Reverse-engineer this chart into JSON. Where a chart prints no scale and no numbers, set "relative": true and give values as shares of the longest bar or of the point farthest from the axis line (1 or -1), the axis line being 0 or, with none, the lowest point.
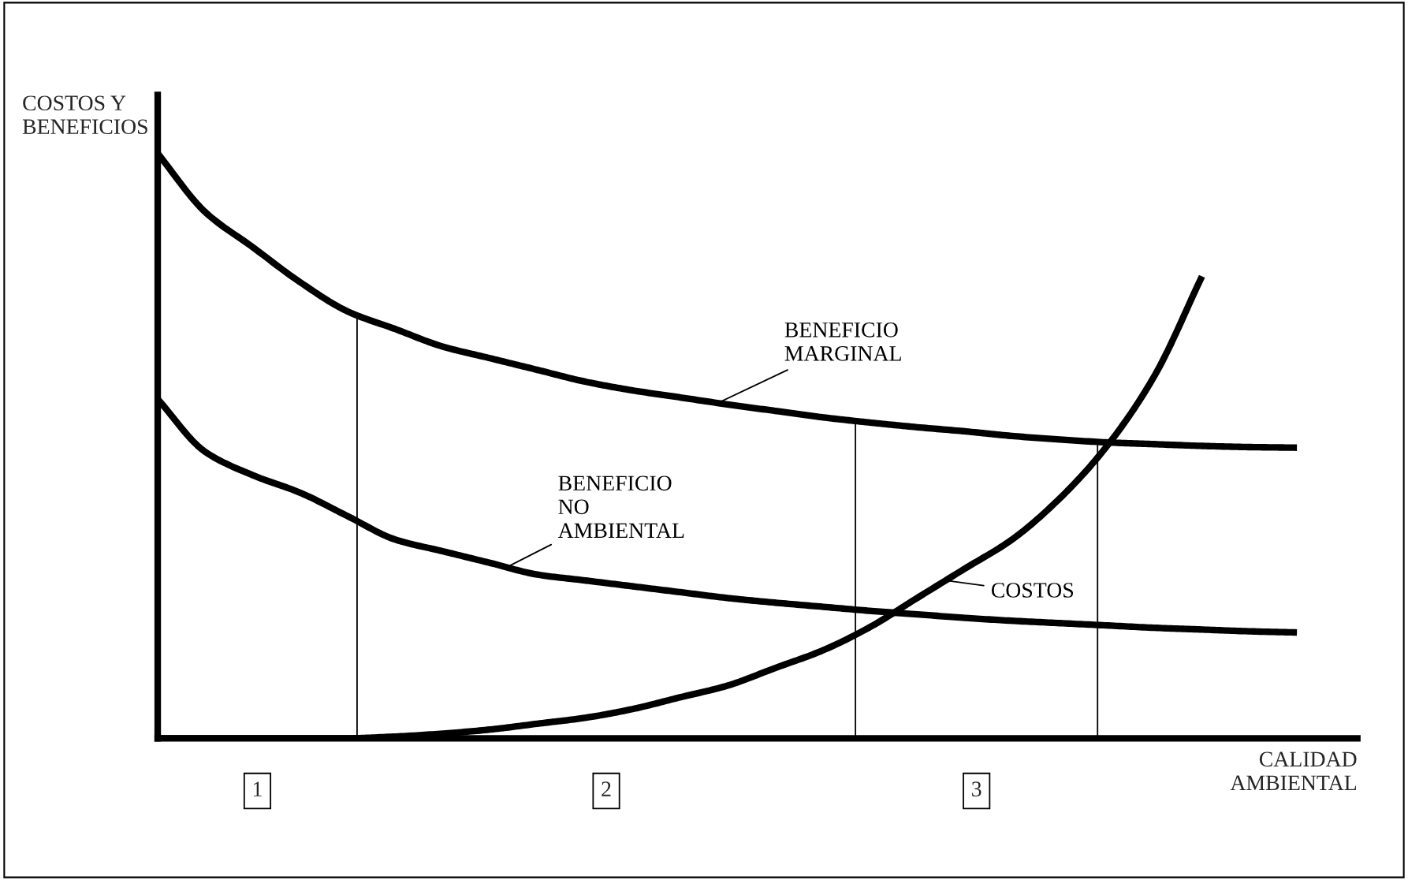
{
  "chart_data": {
    "type": "line",
    "relative": true,
    "xlabel": "CALIDAD\nAMBIENTAL",
    "ylabel": "COSTOS Y\nBENEFICIOS",
    "categories": [
      null,
      null,
      null,
      null,
      null,
      null,
      null,
      null,
      null,
      null,
      null,
      null,
      null,
      null,
      null,
      null,
      null,
      null,
      null,
      null,
      null,
      null,
      null,
      null,
      null
    ],
    "series": [
      {
        "name": "BENEFICIO\nMARGINAL",
        "color": "#000000",
        "values": [
          1.0,
          0.9,
          0.84,
          0.78,
          0.73,
          0.7,
          0.67,
          0.65,
          0.63,
          0.61,
          0.595,
          0.583,
          0.571,
          0.56,
          0.549,
          0.54,
          0.532,
          0.525,
          0.517,
          0.511,
          0.506,
          0.503,
          0.5,
          0.498,
          0.497
        ]
      },
      {
        "name": "BENEFICIO\nNO\nAMBIENTAL",
        "color": "#000000",
        "values": [
          0.58,
          0.49,
          0.45,
          0.42,
          0.38,
          0.34,
          0.32,
          0.3,
          0.28,
          0.27,
          0.26,
          0.25,
          0.24,
          0.232,
          0.225,
          0.218,
          0.212,
          0.206,
          0.201,
          0.197,
          0.193,
          0.189,
          0.186,
          0.183,
          0.181
        ]
      },
      {
        "name": "COSTOS",
        "color": "#000000",
        "values": [
          0,
          0,
          0,
          0,
          0,
          0.003,
          0.008,
          0.015,
          0.025,
          0.035,
          0.05,
          0.07,
          0.09,
          0.12,
          0.15,
          0.19,
          0.24,
          0.29,
          0.34,
          0.41,
          0.5,
          0.62,
          0.79,
          null,
          null
        ]
      }
    ],
    "annotations": [
      "1",
      "2",
      "3"
    ],
    "tick_labels": false,
    "marker": "none",
    "line_style": "solid"
  }
}
